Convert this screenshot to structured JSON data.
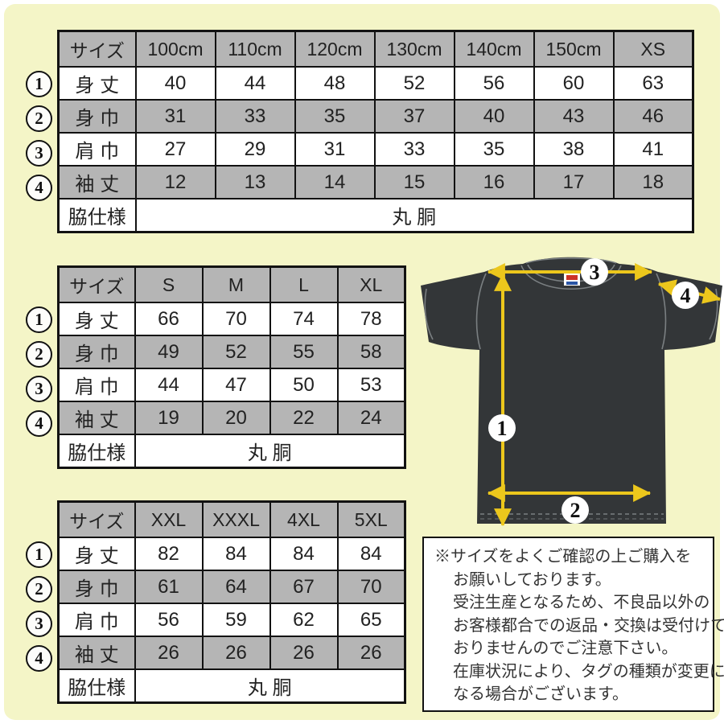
{
  "page": {
    "background_color": "#f4f5c7",
    "frame_color": "#ffffff"
  },
  "colors": {
    "table_header_gray": "#b5b5b5",
    "table_border": "#121212",
    "shirt_dark": "#333638",
    "arrow_yellow": "#ecc71c",
    "tag_red": "#cc3327",
    "tag_blue": "#2a55a5"
  },
  "tables": [
    {
      "name": "kids-sizes",
      "size_header": "サイズ",
      "columns": [
        "100cm",
        "110cm",
        "120cm",
        "130cm",
        "140cm",
        "150cm",
        "XS"
      ],
      "rows": [
        {
          "marker": "1",
          "label": "身 丈",
          "values": [
            "40",
            "44",
            "48",
            "52",
            "56",
            "60",
            "63"
          ]
        },
        {
          "marker": "2",
          "label": "身 巾",
          "values": [
            "31",
            "33",
            "35",
            "37",
            "40",
            "43",
            "46"
          ]
        },
        {
          "marker": "3",
          "label": "肩 巾",
          "values": [
            "27",
            "29",
            "31",
            "33",
            "35",
            "38",
            "41"
          ]
        },
        {
          "marker": "4",
          "label": "袖 丈",
          "values": [
            "12",
            "13",
            "14",
            "15",
            "16",
            "17",
            "18"
          ]
        }
      ],
      "footer_label": "脇仕様",
      "footer_value": "丸 胴"
    },
    {
      "name": "adult-sizes",
      "size_header": "サイズ",
      "columns": [
        "S",
        "M",
        "L",
        "XL"
      ],
      "rows": [
        {
          "marker": "1",
          "label": "身 丈",
          "values": [
            "66",
            "70",
            "74",
            "78"
          ]
        },
        {
          "marker": "2",
          "label": "身 巾",
          "values": [
            "49",
            "52",
            "55",
            "58"
          ]
        },
        {
          "marker": "3",
          "label": "肩 巾",
          "values": [
            "44",
            "47",
            "50",
            "53"
          ]
        },
        {
          "marker": "4",
          "label": "袖 丈",
          "values": [
            "19",
            "20",
            "22",
            "24"
          ]
        }
      ],
      "footer_label": "脇仕様",
      "footer_value": "丸 胴"
    },
    {
      "name": "big-sizes",
      "size_header": "サイズ",
      "columns": [
        "XXL",
        "XXXL",
        "4XL",
        "5XL"
      ],
      "rows": [
        {
          "marker": "1",
          "label": "身 丈",
          "values": [
            "82",
            "84",
            "84",
            "84"
          ]
        },
        {
          "marker": "2",
          "label": "身 巾",
          "values": [
            "61",
            "64",
            "67",
            "70"
          ]
        },
        {
          "marker": "3",
          "label": "肩 巾",
          "values": [
            "56",
            "59",
            "62",
            "65"
          ]
        },
        {
          "marker": "4",
          "label": "袖 丈",
          "values": [
            "26",
            "26",
            "26",
            "26"
          ]
        }
      ],
      "footer_label": "脇仕様",
      "footer_value": "丸 胴"
    }
  ],
  "shirt_diagram": {
    "markers": [
      "1",
      "2",
      "3",
      "4"
    ]
  },
  "notice": {
    "lines": [
      "※サイズをよくご確認の上ご購入を",
      "お願いしております。",
      "受注生産となるため、不良品以外の",
      "お客様都合での返品・交換は受付けて",
      "おりませんのでご注意下さい。",
      "在庫状況により、タグの種類が変更に",
      "なる場合がございます。"
    ]
  }
}
